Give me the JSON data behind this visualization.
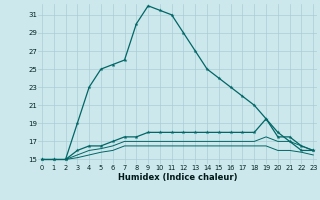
{
  "xlabel": "Humidex (Indice chaleur)",
  "xlim_left": -0.3,
  "xlim_right": 23.3,
  "ylim_bottom": 14.5,
  "ylim_top": 32.2,
  "yticks": [
    15,
    17,
    19,
    21,
    23,
    25,
    27,
    29,
    31
  ],
  "xticks": [
    0,
    1,
    2,
    3,
    4,
    5,
    6,
    7,
    8,
    9,
    10,
    11,
    12,
    13,
    14,
    15,
    16,
    17,
    18,
    19,
    20,
    21,
    22,
    23
  ],
  "background_color": "#cde8ec",
  "grid_color": "#a8cdd4",
  "line_color": "#006666",
  "series_main_x": [
    0,
    1,
    2,
    3,
    4,
    5,
    6,
    7,
    8,
    9,
    10,
    11,
    12,
    13,
    14,
    15,
    16,
    17,
    18,
    19,
    20,
    21,
    22,
    23
  ],
  "series_main_y": [
    15,
    15,
    15,
    19,
    23,
    25,
    25.5,
    26,
    30,
    32,
    31.5,
    31,
    29,
    27,
    25,
    24,
    23,
    22,
    21,
    19.5,
    18,
    17,
    16,
    16
  ],
  "series2_x": [
    0,
    1,
    2,
    3,
    4,
    5,
    6,
    7,
    8,
    9,
    10,
    11,
    12,
    13,
    14,
    15,
    16,
    17,
    18,
    19,
    20,
    21,
    22,
    23
  ],
  "series2_y": [
    15,
    15,
    15,
    16,
    16.5,
    16.5,
    17,
    17.5,
    17.5,
    18,
    18,
    18,
    18,
    18,
    18,
    18,
    18,
    18,
    18,
    19.5,
    17.5,
    17.5,
    16.5,
    16
  ],
  "series3_x": [
    0,
    1,
    2,
    3,
    4,
    5,
    6,
    7,
    8,
    9,
    10,
    11,
    12,
    13,
    14,
    15,
    16,
    17,
    18,
    19,
    20,
    21,
    22,
    23
  ],
  "series3_y": [
    15,
    15,
    15,
    15.5,
    16,
    16.2,
    16.5,
    17,
    17,
    17,
    17,
    17,
    17,
    17,
    17,
    17,
    17,
    17,
    17,
    17.5,
    17,
    17,
    16.5,
    16
  ],
  "series4_x": [
    0,
    1,
    2,
    3,
    4,
    5,
    6,
    7,
    8,
    9,
    10,
    11,
    12,
    13,
    14,
    15,
    16,
    17,
    18,
    19,
    20,
    21,
    22,
    23
  ],
  "series4_y": [
    15,
    15,
    15,
    15.2,
    15.5,
    15.8,
    16,
    16.5,
    16.5,
    16.5,
    16.5,
    16.5,
    16.5,
    16.5,
    16.5,
    16.5,
    16.5,
    16.5,
    16.5,
    16.5,
    16,
    16,
    15.8,
    15.5
  ]
}
